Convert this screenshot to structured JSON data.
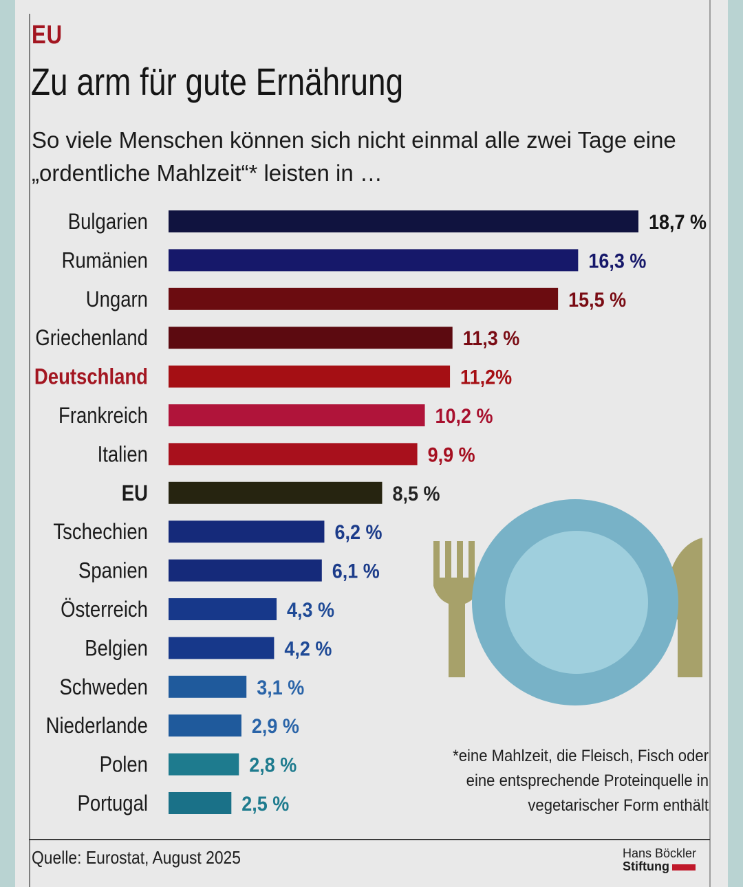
{
  "header": {
    "kicker": "EU",
    "title": "Zu arm für gute Ernährung",
    "subtitle": "So viele Menschen können sich nicht einmal alle zwei Tage eine „ordentliche Mahlzeit“* leisten in …"
  },
  "chart_data": {
    "type": "bar",
    "orientation": "horizontal",
    "title": "Zu arm für gute Ernährung",
    "categories": [
      "Bulgarien",
      "Rumänien",
      "Ungarn",
      "Griechenland",
      "Deutschland",
      "Frankreich",
      "Italien",
      "EU",
      "Tschechien",
      "Spanien",
      "Österreich",
      "Belgien",
      "Schweden",
      "Niederlande",
      "Polen",
      "Portugal"
    ],
    "values": [
      18.7,
      16.3,
      15.5,
      11.3,
      11.2,
      10.2,
      9.9,
      8.5,
      6.2,
      6.1,
      4.3,
      4.2,
      3.1,
      2.9,
      2.8,
      2.5
    ],
    "value_labels": [
      "18,7 %",
      "16,3 %",
      "15,5 %",
      "11,3 %",
      "11,2%",
      "10,2 %",
      "9,9 %",
      "8,5 %",
      "6,2 %",
      "6,1 %",
      "4,3 %",
      "4,2 %",
      "3,1 %",
      "2,9 %",
      "2,8 %",
      "2,5 %"
    ],
    "unit": "%",
    "xlim": [
      0,
      18.7
    ],
    "grid": false,
    "colors": [
      "#10133f",
      "#16186a",
      "#6b0c10",
      "#5c0a10",
      "#a50f14",
      "#b0143a",
      "#a8101c",
      "#262410",
      "#152a7a",
      "#152a7a",
      "#17388a",
      "#17388a",
      "#1f5a9c",
      "#1f5a9c",
      "#1e7b8e",
      "#1a7188"
    ],
    "label_colors": [
      "#141414",
      "#16186a",
      "#7a0c14",
      "#7a0c14",
      "#a50f14",
      "#a8102e",
      "#a50f20",
      "#232323",
      "#1c3c8a",
      "#1c3c8a",
      "#1f4a96",
      "#1f4a96",
      "#2a64a8",
      "#2a64a8",
      "#1e7b8e",
      "#1e7b8e"
    ],
    "highlight": "Deutschland"
  },
  "illustration": {
    "icons": [
      "fork-icon",
      "plate-icon",
      "knife-icon"
    ],
    "plate_color": "#78b2c7",
    "cutlery_color": "#a7a16a"
  },
  "footnote": {
    "lines": [
      "*eine Mahlzeit, die Fleisch, Fisch oder",
      "eine entsprechende Proteinquelle in",
      "vegetarischer Form enthält"
    ]
  },
  "footer": {
    "source": "Quelle: Eurostat, August 2025",
    "logo_line1": "Hans Böckler",
    "logo_line2": "Stiftung"
  }
}
